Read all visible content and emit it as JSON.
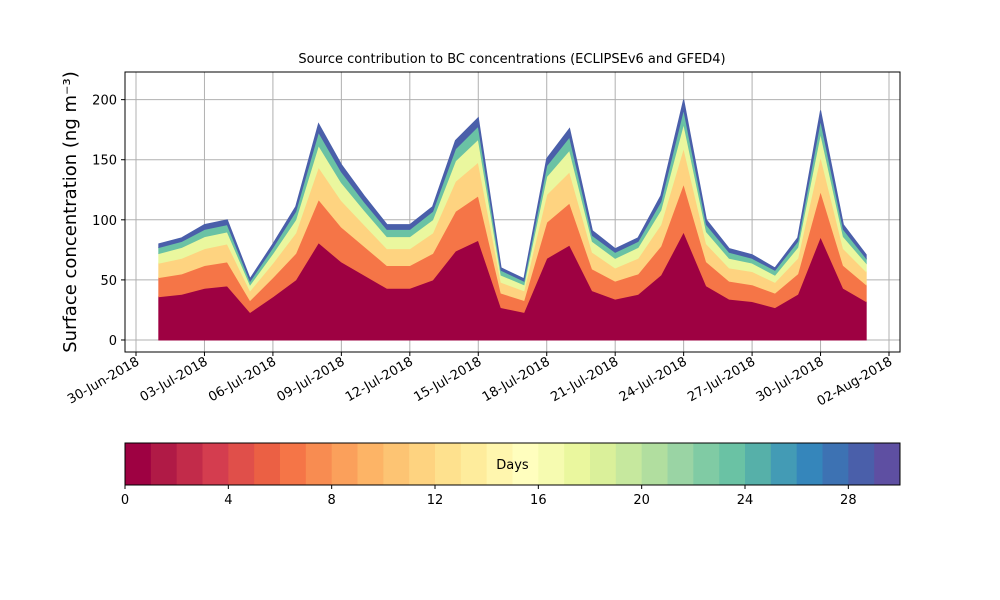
{
  "chart_data": {
    "type": "stacked_area",
    "title": "Source contribution to BC concentrations (ECLIPSEv6 and GFED4)",
    "y_label": "Surface concentration (ng m⁻³)",
    "x": [
      "01-Jul-2018",
      "02-Jul-2018",
      "03-Jul-2018",
      "04-Jul-2018",
      "05-Jul-2018",
      "06-Jul-2018",
      "07-Jul-2018",
      "08-Jul-2018",
      "09-Jul-2018",
      "10-Jul-2018",
      "11-Jul-2018",
      "12-Jul-2018",
      "13-Jul-2018",
      "14-Jul-2018",
      "15-Jul-2018",
      "16-Jul-2018",
      "17-Jul-2018",
      "18-Jul-2018",
      "19-Jul-2018",
      "20-Jul-2018",
      "21-Jul-2018",
      "22-Jul-2018",
      "23-Jul-2018",
      "24-Jul-2018",
      "25-Jul-2018",
      "26-Jul-2018",
      "27-Jul-2018",
      "28-Jul-2018",
      "29-Jul-2018",
      "30-Jul-2018",
      "31-Jul-2018",
      "01-Aug-2018"
    ],
    "xlim": [
      "30-Jun-2018",
      "02-Aug-2018"
    ],
    "xticks": [
      "30-Jun-2018",
      "03-Jul-2018",
      "06-Jul-2018",
      "09-Jul-2018",
      "12-Jul-2018",
      "15-Jul-2018",
      "18-Jul-2018",
      "21-Jul-2018",
      "24-Jul-2018",
      "27-Jul-2018",
      "30-Jul-2018",
      "02-Aug-2018"
    ],
    "ylim": [
      -10,
      223
    ],
    "yticks": [
      0,
      50,
      100,
      150,
      200
    ],
    "grid": true,
    "series": [
      {
        "color": "#9e0142",
        "values": [
          36,
          38,
          43,
          45,
          23,
          36,
          50,
          81,
          65,
          54,
          43,
          43,
          50,
          74,
          83,
          27,
          23,
          68,
          79,
          41,
          34,
          38,
          54,
          90,
          45,
          34,
          32,
          27,
          38,
          86,
          43,
          32
        ]
      },
      {
        "color": "#f57547",
        "values": [
          16,
          17,
          19,
          20,
          10,
          16,
          22,
          36,
          29,
          24,
          19,
          19,
          22,
          33,
          37,
          12,
          10,
          30,
          35,
          18,
          15,
          17,
          24,
          40,
          20,
          15,
          14,
          12,
          17,
          38,
          19,
          14
        ]
      },
      {
        "color": "#fed380",
        "values": [
          12,
          13,
          14,
          15,
          8,
          12,
          17,
          27,
          22,
          18,
          14,
          14,
          17,
          25,
          28,
          9,
          8,
          23,
          26,
          14,
          11,
          13,
          18,
          30,
          15,
          11,
          11,
          9,
          13,
          29,
          14,
          11
        ]
      },
      {
        "color": "#eaf79e",
        "values": [
          8,
          9,
          10,
          10,
          5,
          8,
          11,
          18,
          15,
          12,
          10,
          10,
          11,
          17,
          19,
          6,
          5,
          15,
          18,
          9,
          8,
          9,
          12,
          20,
          10,
          8,
          7,
          6,
          9,
          19,
          10,
          7
        ]
      },
      {
        "color": "#6ac2a4",
        "values": [
          5,
          5,
          6,
          6,
          3,
          5,
          7,
          11,
          9,
          7,
          6,
          6,
          7,
          10,
          11,
          4,
          3,
          9,
          11,
          5,
          5,
          5,
          7,
          12,
          6,
          5,
          4,
          4,
          5,
          11,
          6,
          4
        ]
      },
      {
        "color": "#4a5faa",
        "values": [
          3,
          3,
          4,
          4,
          2,
          3,
          4,
          7,
          6,
          5,
          4,
          4,
          4,
          7,
          7,
          2,
          2,
          6,
          7,
          4,
          3,
          3,
          5,
          8,
          4,
          3,
          3,
          2,
          3,
          8,
          4,
          3
        ]
      }
    ],
    "colorbar": {
      "label": "Days",
      "lim": [
        0,
        30
      ],
      "ticks": [
        0,
        4,
        8,
        12,
        16,
        20,
        24,
        28
      ],
      "colors": [
        "#9e0142",
        "#b01a46",
        "#c22b4a",
        "#d43d4f",
        "#e04f4a",
        "#eb6044",
        "#f57547",
        "#f88c51",
        "#fba05b",
        "#fdb466",
        "#fdc473",
        "#fed380",
        "#fee18e",
        "#feec9c",
        "#fff6ae",
        "#fffebe",
        "#f6fbb0",
        "#eaf79e",
        "#daf09a",
        "#c6e89e",
        "#b1de9f",
        "#9ad4a4",
        "#80cba4",
        "#6ac2a4",
        "#56b0a9",
        "#439bb5",
        "#3586bb",
        "#3d72b3",
        "#4a5faa",
        "#5e4fa2"
      ]
    }
  }
}
